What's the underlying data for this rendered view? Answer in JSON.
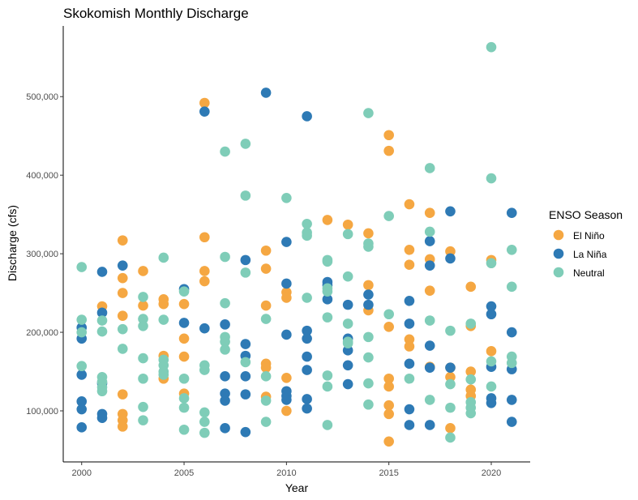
{
  "chart_data": {
    "type": "scatter",
    "title": "Skokomish Monthly Discharge",
    "xlabel": "Year",
    "ylabel": "Discharge (cfs)",
    "xlim": [
      1999.1,
      2021.9
    ],
    "ylim": [
      35000,
      590000
    ],
    "x_ticks": [
      2000,
      2005,
      2010,
      2015,
      2020
    ],
    "x_tick_labels": [
      "2000",
      "2005",
      "2010",
      "2015",
      "2020"
    ],
    "y_ticks": [
      100000,
      200000,
      300000,
      400000,
      500000
    ],
    "y_tick_labels": [
      "100,000",
      "200,000",
      "300,000",
      "400,000",
      "500,000"
    ],
    "grid": false,
    "legend": {
      "title": "ENSO Season",
      "position": "right"
    },
    "series": [
      {
        "name": "El Niño",
        "color": "#F5A742",
        "points": [
          [
            2001,
            233000
          ],
          [
            2002,
            317000
          ],
          [
            2002,
            269000
          ],
          [
            2002,
            250000
          ],
          [
            2002,
            221000
          ],
          [
            2002,
            121000
          ],
          [
            2002,
            96000
          ],
          [
            2002,
            88000
          ],
          [
            2002,
            80000
          ],
          [
            2003,
            278000
          ],
          [
            2003,
            234000
          ],
          [
            2004,
            242000
          ],
          [
            2004,
            236000
          ],
          [
            2004,
            170000
          ],
          [
            2004,
            141000
          ],
          [
            2005,
            236000
          ],
          [
            2005,
            192000
          ],
          [
            2005,
            169000
          ],
          [
            2005,
            122000
          ],
          [
            2006,
            492000
          ],
          [
            2006,
            321000
          ],
          [
            2006,
            278000
          ],
          [
            2006,
            265000
          ],
          [
            2009,
            304000
          ],
          [
            2009,
            281000
          ],
          [
            2009,
            234000
          ],
          [
            2009,
            160000
          ],
          [
            2009,
            155000
          ],
          [
            2009,
            118000
          ],
          [
            2010,
            251000
          ],
          [
            2010,
            244000
          ],
          [
            2010,
            142000
          ],
          [
            2010,
            100000
          ],
          [
            2012,
            343000
          ],
          [
            2013,
            337000
          ],
          [
            2014,
            326000
          ],
          [
            2014,
            260000
          ],
          [
            2014,
            228000
          ],
          [
            2015,
            451000
          ],
          [
            2015,
            431000
          ],
          [
            2015,
            207000
          ],
          [
            2015,
            141000
          ],
          [
            2015,
            131000
          ],
          [
            2015,
            107000
          ],
          [
            2015,
            96000
          ],
          [
            2015,
            61000
          ],
          [
            2016,
            363000
          ],
          [
            2016,
            305000
          ],
          [
            2016,
            286000
          ],
          [
            2016,
            191000
          ],
          [
            2016,
            182000
          ],
          [
            2017,
            352000
          ],
          [
            2017,
            293000
          ],
          [
            2017,
            253000
          ],
          [
            2017,
            156000
          ],
          [
            2018,
            303000
          ],
          [
            2018,
            155000
          ],
          [
            2018,
            143000
          ],
          [
            2018,
            78000
          ],
          [
            2019,
            258000
          ],
          [
            2019,
            208000
          ],
          [
            2019,
            150000
          ],
          [
            2019,
            127000
          ],
          [
            2019,
            119000
          ],
          [
            2020,
            292000
          ],
          [
            2020,
            176000
          ]
        ]
      },
      {
        "name": "La Niña",
        "color": "#2E7AB5",
        "points": [
          [
            2000,
            206000
          ],
          [
            2000,
            192000
          ],
          [
            2000,
            146000
          ],
          [
            2000,
            112000
          ],
          [
            2000,
            102000
          ],
          [
            2000,
            79000
          ],
          [
            2001,
            277000
          ],
          [
            2001,
            225000
          ],
          [
            2001,
            135000
          ],
          [
            2001,
            96000
          ],
          [
            2001,
            91000
          ],
          [
            2002,
            285000
          ],
          [
            2005,
            255000
          ],
          [
            2005,
            212000
          ],
          [
            2006,
            481000
          ],
          [
            2006,
            205000
          ],
          [
            2007,
            210000
          ],
          [
            2007,
            144000
          ],
          [
            2007,
            122000
          ],
          [
            2007,
            113000
          ],
          [
            2007,
            78000
          ],
          [
            2008,
            292000
          ],
          [
            2008,
            185000
          ],
          [
            2008,
            170000
          ],
          [
            2008,
            144000
          ],
          [
            2008,
            121000
          ],
          [
            2008,
            73000
          ],
          [
            2009,
            505000
          ],
          [
            2010,
            315000
          ],
          [
            2010,
            262000
          ],
          [
            2010,
            197000
          ],
          [
            2010,
            125000
          ],
          [
            2010,
            119000
          ],
          [
            2010,
            114000
          ],
          [
            2011,
            475000
          ],
          [
            2011,
            202000
          ],
          [
            2011,
            192000
          ],
          [
            2011,
            169000
          ],
          [
            2011,
            152000
          ],
          [
            2011,
            115000
          ],
          [
            2011,
            103000
          ],
          [
            2012,
            264000
          ],
          [
            2012,
            260000
          ],
          [
            2012,
            242000
          ],
          [
            2013,
            235000
          ],
          [
            2013,
            192000
          ],
          [
            2013,
            177000
          ],
          [
            2013,
            158000
          ],
          [
            2013,
            134000
          ],
          [
            2014,
            248000
          ],
          [
            2014,
            235000
          ],
          [
            2016,
            240000
          ],
          [
            2016,
            211000
          ],
          [
            2016,
            160000
          ],
          [
            2016,
            102000
          ],
          [
            2016,
            82000
          ],
          [
            2017,
            316000
          ],
          [
            2017,
            285000
          ],
          [
            2017,
            183000
          ],
          [
            2017,
            155000
          ],
          [
            2017,
            82000
          ],
          [
            2018,
            354000
          ],
          [
            2018,
            294000
          ],
          [
            2018,
            155000
          ],
          [
            2020,
            233000
          ],
          [
            2020,
            223000
          ],
          [
            2020,
            156000
          ],
          [
            2020,
            116000
          ],
          [
            2020,
            110000
          ],
          [
            2021,
            352000
          ],
          [
            2021,
            200000
          ],
          [
            2021,
            153000
          ],
          [
            2021,
            114000
          ],
          [
            2021,
            86000
          ]
        ]
      },
      {
        "name": "Neutral",
        "color": "#7FCDB8",
        "points": [
          [
            2000,
            283000
          ],
          [
            2000,
            216000
          ],
          [
            2000,
            200000
          ],
          [
            2000,
            157000
          ],
          [
            2001,
            215000
          ],
          [
            2001,
            201000
          ],
          [
            2001,
            143000
          ],
          [
            2001,
            137000
          ],
          [
            2001,
            130000
          ],
          [
            2001,
            125000
          ],
          [
            2002,
            204000
          ],
          [
            2002,
            179000
          ],
          [
            2003,
            245000
          ],
          [
            2003,
            217000
          ],
          [
            2003,
            208000
          ],
          [
            2003,
            167000
          ],
          [
            2003,
            141000
          ],
          [
            2003,
            105000
          ],
          [
            2003,
            88000
          ],
          [
            2004,
            295000
          ],
          [
            2004,
            216000
          ],
          [
            2004,
            165000
          ],
          [
            2004,
            158000
          ],
          [
            2004,
            150000
          ],
          [
            2004,
            146000
          ],
          [
            2005,
            252000
          ],
          [
            2005,
            141000
          ],
          [
            2005,
            116000
          ],
          [
            2005,
            104000
          ],
          [
            2005,
            76000
          ],
          [
            2006,
            158000
          ],
          [
            2006,
            152000
          ],
          [
            2006,
            98000
          ],
          [
            2006,
            86000
          ],
          [
            2006,
            72000
          ],
          [
            2007,
            430000
          ],
          [
            2007,
            296000
          ],
          [
            2007,
            237000
          ],
          [
            2007,
            194000
          ],
          [
            2007,
            188000
          ],
          [
            2007,
            178000
          ],
          [
            2008,
            440000
          ],
          [
            2008,
            374000
          ],
          [
            2008,
            276000
          ],
          [
            2008,
            162000
          ],
          [
            2009,
            217000
          ],
          [
            2009,
            144000
          ],
          [
            2009,
            113000
          ],
          [
            2009,
            86000
          ],
          [
            2010,
            371000
          ],
          [
            2011,
            338000
          ],
          [
            2011,
            327000
          ],
          [
            2011,
            323000
          ],
          [
            2011,
            244000
          ],
          [
            2012,
            292000
          ],
          [
            2012,
            290000
          ],
          [
            2012,
            256000
          ],
          [
            2012,
            252000
          ],
          [
            2012,
            219000
          ],
          [
            2012,
            145000
          ],
          [
            2012,
            131000
          ],
          [
            2012,
            82000
          ],
          [
            2013,
            325000
          ],
          [
            2013,
            271000
          ],
          [
            2013,
            211000
          ],
          [
            2013,
            188000
          ],
          [
            2013,
            186000
          ],
          [
            2014,
            479000
          ],
          [
            2014,
            313000
          ],
          [
            2014,
            309000
          ],
          [
            2014,
            194000
          ],
          [
            2014,
            168000
          ],
          [
            2014,
            135000
          ],
          [
            2014,
            108000
          ],
          [
            2015,
            348000
          ],
          [
            2015,
            223000
          ],
          [
            2016,
            141000
          ],
          [
            2017,
            409000
          ],
          [
            2017,
            328000
          ],
          [
            2017,
            215000
          ],
          [
            2017,
            114000
          ],
          [
            2018,
            202000
          ],
          [
            2018,
            134000
          ],
          [
            2018,
            104000
          ],
          [
            2018,
            66000
          ],
          [
            2019,
            211000
          ],
          [
            2019,
            140000
          ],
          [
            2019,
            111000
          ],
          [
            2019,
            104000
          ],
          [
            2019,
            97000
          ],
          [
            2020,
            563000
          ],
          [
            2020,
            396000
          ],
          [
            2020,
            288000
          ],
          [
            2020,
            163000
          ],
          [
            2020,
            131000
          ],
          [
            2021,
            305000
          ],
          [
            2021,
            258000
          ],
          [
            2021,
            169000
          ],
          [
            2021,
            161000
          ]
        ]
      }
    ]
  }
}
